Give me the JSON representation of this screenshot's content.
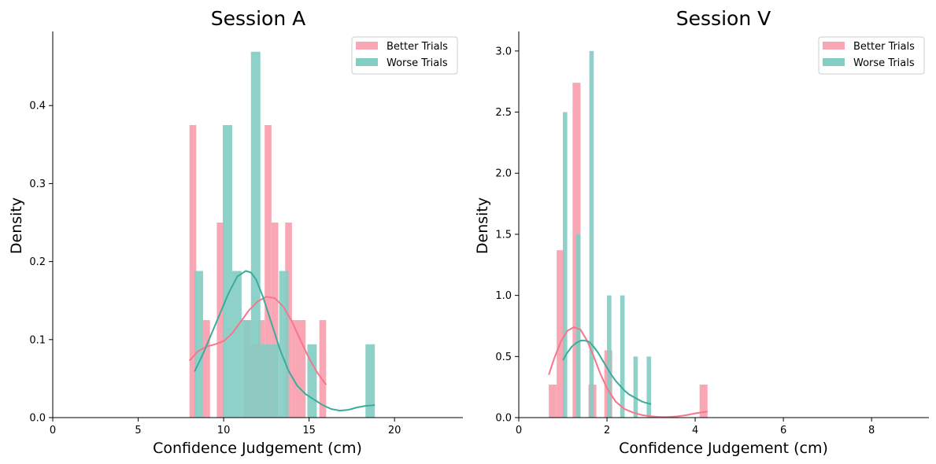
{
  "colors": {
    "better": "#f7768b",
    "worse": "#3bab9b",
    "better_fill": "#f9a7b5",
    "worse_fill": "#84cdc3",
    "overlap": "#82aba8"
  },
  "chart_data": [
    {
      "type": "histogram",
      "title": "Session A",
      "xlabel": "Confidence Judgement (cm)",
      "ylabel": "Density",
      "xlim": [
        0,
        24
      ],
      "ylim": [
        0,
        0.495
      ],
      "xticks": [
        0,
        5,
        10,
        15,
        20
      ],
      "xtick_labels": [
        "0",
        "5",
        "10",
        "15",
        "20"
      ],
      "yticks": [
        0.0,
        0.1,
        0.2,
        0.3,
        0.4
      ],
      "ytick_labels": [
        "0.0",
        "0.1",
        "0.2",
        "0.3",
        "0.4"
      ],
      "legend": {
        "position": "top-right",
        "entries": [
          "Better Trials",
          "Worse Trials"
        ]
      },
      "series": [
        {
          "name": "Better Trials",
          "color_key": "better",
          "bins": [
            {
              "x0": 8.0,
              "x1": 8.4,
              "density": 0.375
            },
            {
              "x0": 8.8,
              "x1": 9.2,
              "density": 0.125
            },
            {
              "x0": 9.6,
              "x1": 10.0,
              "density": 0.25
            },
            {
              "x0": 11.2,
              "x1": 11.6,
              "density": 0.125
            },
            {
              "x0": 11.6,
              "x1": 12.0,
              "density": 0.094
            },
            {
              "x0": 12.0,
              "x1": 12.4,
              "density": 0.125
            },
            {
              "x0": 12.4,
              "x1": 12.8,
              "density": 0.375
            },
            {
              "x0": 12.8,
              "x1": 13.2,
              "density": 0.25
            },
            {
              "x0": 13.6,
              "x1": 14.0,
              "density": 0.25
            },
            {
              "x0": 14.0,
              "x1": 14.8,
              "density": 0.125
            },
            {
              "x0": 15.6,
              "x1": 16.0,
              "density": 0.125
            }
          ],
          "kde": {
            "x": [
              8.0,
              8.5,
              9.0,
              9.5,
              10.0,
              10.5,
              11.0,
              11.5,
              12.0,
              12.5,
              13.0,
              13.5,
              14.0,
              14.5,
              15.0,
              15.5,
              16.0
            ],
            "y": [
              0.073,
              0.085,
              0.091,
              0.094,
              0.098,
              0.108,
              0.123,
              0.138,
              0.149,
              0.155,
              0.153,
              0.142,
              0.123,
              0.099,
              0.076,
              0.057,
              0.042
            ]
          }
        },
        {
          "name": "Worse Trials",
          "color_key": "worse",
          "bins": [
            {
              "x0": 8.3,
              "x1": 8.8,
              "density": 0.188
            },
            {
              "x0": 9.95,
              "x1": 10.5,
              "density": 0.375
            },
            {
              "x0": 10.5,
              "x1": 11.05,
              "density": 0.188
            },
            {
              "x0": 11.05,
              "x1": 11.6,
              "density": 0.125
            },
            {
              "x0": 11.6,
              "x1": 12.15,
              "density": 0.469
            },
            {
              "x0": 12.15,
              "x1": 12.7,
              "density": 0.094
            },
            {
              "x0": 12.7,
              "x1": 13.25,
              "density": 0.094
            },
            {
              "x0": 13.25,
              "x1": 13.8,
              "density": 0.188
            },
            {
              "x0": 14.9,
              "x1": 15.45,
              "density": 0.094
            },
            {
              "x0": 18.3,
              "x1": 18.85,
              "density": 0.094
            }
          ],
          "kde": {
            "x": [
              8.3,
              8.8,
              9.3,
              9.8,
              10.3,
              10.8,
              11.3,
              11.6,
              11.9,
              12.3,
              12.8,
              13.3,
              13.8,
              14.3,
              14.8,
              15.3,
              15.8,
              16.3,
              16.8,
              17.3,
              17.8,
              18.3,
              18.85
            ],
            "y": [
              0.059,
              0.082,
              0.108,
              0.134,
              0.16,
              0.181,
              0.188,
              0.186,
              0.177,
              0.155,
              0.121,
              0.087,
              0.06,
              0.041,
              0.03,
              0.023,
              0.016,
              0.011,
              0.009,
              0.01,
              0.013,
              0.015,
              0.016
            ]
          }
        }
      ]
    },
    {
      "type": "histogram",
      "title": "Session V",
      "xlabel": "Confidence Judgement (cm)",
      "ylabel": "Density",
      "xlim": [
        0,
        9.3
      ],
      "ylim": [
        0,
        3.16
      ],
      "xticks": [
        0,
        2,
        4,
        6,
        8
      ],
      "xtick_labels": [
        "0",
        "2",
        "4",
        "6",
        "8"
      ],
      "yticks": [
        0.0,
        0.5,
        1.0,
        1.5,
        2.0,
        2.5,
        3.0
      ],
      "ytick_labels": [
        "0.0",
        "0.5",
        "1.0",
        "1.5",
        "2.0",
        "2.5",
        "3.0"
      ],
      "legend": {
        "position": "top-right",
        "entries": [
          "Better Trials",
          "Worse Trials"
        ]
      },
      "series": [
        {
          "name": "Better Trials",
          "color_key": "better",
          "bins": [
            {
              "x0": 0.68,
              "x1": 0.86,
              "density": 0.27
            },
            {
              "x0": 0.86,
              "x1": 1.04,
              "density": 1.37
            },
            {
              "x0": 1.22,
              "x1": 1.4,
              "density": 2.74
            },
            {
              "x0": 1.58,
              "x1": 1.76,
              "density": 0.27
            },
            {
              "x0": 1.94,
              "x1": 2.12,
              "density": 0.55
            },
            {
              "x0": 4.1,
              "x1": 4.28,
              "density": 0.27
            }
          ],
          "kde": {
            "x": [
              0.68,
              0.8,
              0.95,
              1.1,
              1.25,
              1.4,
              1.55,
              1.7,
              1.85,
              2.0,
              2.2,
              2.4,
              2.6,
              2.8,
              3.0,
              3.2,
              3.4,
              3.6,
              3.8,
              4.0,
              4.28
            ],
            "y": [
              0.35,
              0.48,
              0.62,
              0.71,
              0.74,
              0.72,
              0.63,
              0.5,
              0.36,
              0.24,
              0.13,
              0.07,
              0.04,
              0.02,
              0.01,
              0.005,
              0.005,
              0.01,
              0.02,
              0.035,
              0.05
            ]
          }
        },
        {
          "name": "Worse Trials",
          "color_key": "worse",
          "bins": [
            {
              "x0": 1.0,
              "x1": 1.1,
              "density": 2.5
            },
            {
              "x0": 1.3,
              "x1": 1.4,
              "density": 1.5
            },
            {
              "x0": 1.6,
              "x1": 1.7,
              "density": 3.0
            },
            {
              "x0": 2.0,
              "x1": 2.1,
              "density": 1.0
            },
            {
              "x0": 2.3,
              "x1": 2.4,
              "density": 1.0
            },
            {
              "x0": 2.6,
              "x1": 2.7,
              "density": 0.5
            },
            {
              "x0": 2.9,
              "x1": 3.0,
              "density": 0.5
            }
          ],
          "kde": {
            "x": [
              1.0,
              1.1,
              1.2,
              1.3,
              1.4,
              1.5,
              1.6,
              1.7,
              1.8,
              1.9,
              2.0,
              2.1,
              2.2,
              2.3,
              2.4,
              2.5,
              2.6,
              2.7,
              2.8,
              2.9,
              3.0
            ],
            "y": [
              0.47,
              0.53,
              0.58,
              0.61,
              0.63,
              0.63,
              0.62,
              0.58,
              0.53,
              0.47,
              0.41,
              0.35,
              0.3,
              0.26,
              0.22,
              0.19,
              0.17,
              0.15,
              0.13,
              0.12,
              0.11
            ]
          }
        }
      ]
    }
  ]
}
